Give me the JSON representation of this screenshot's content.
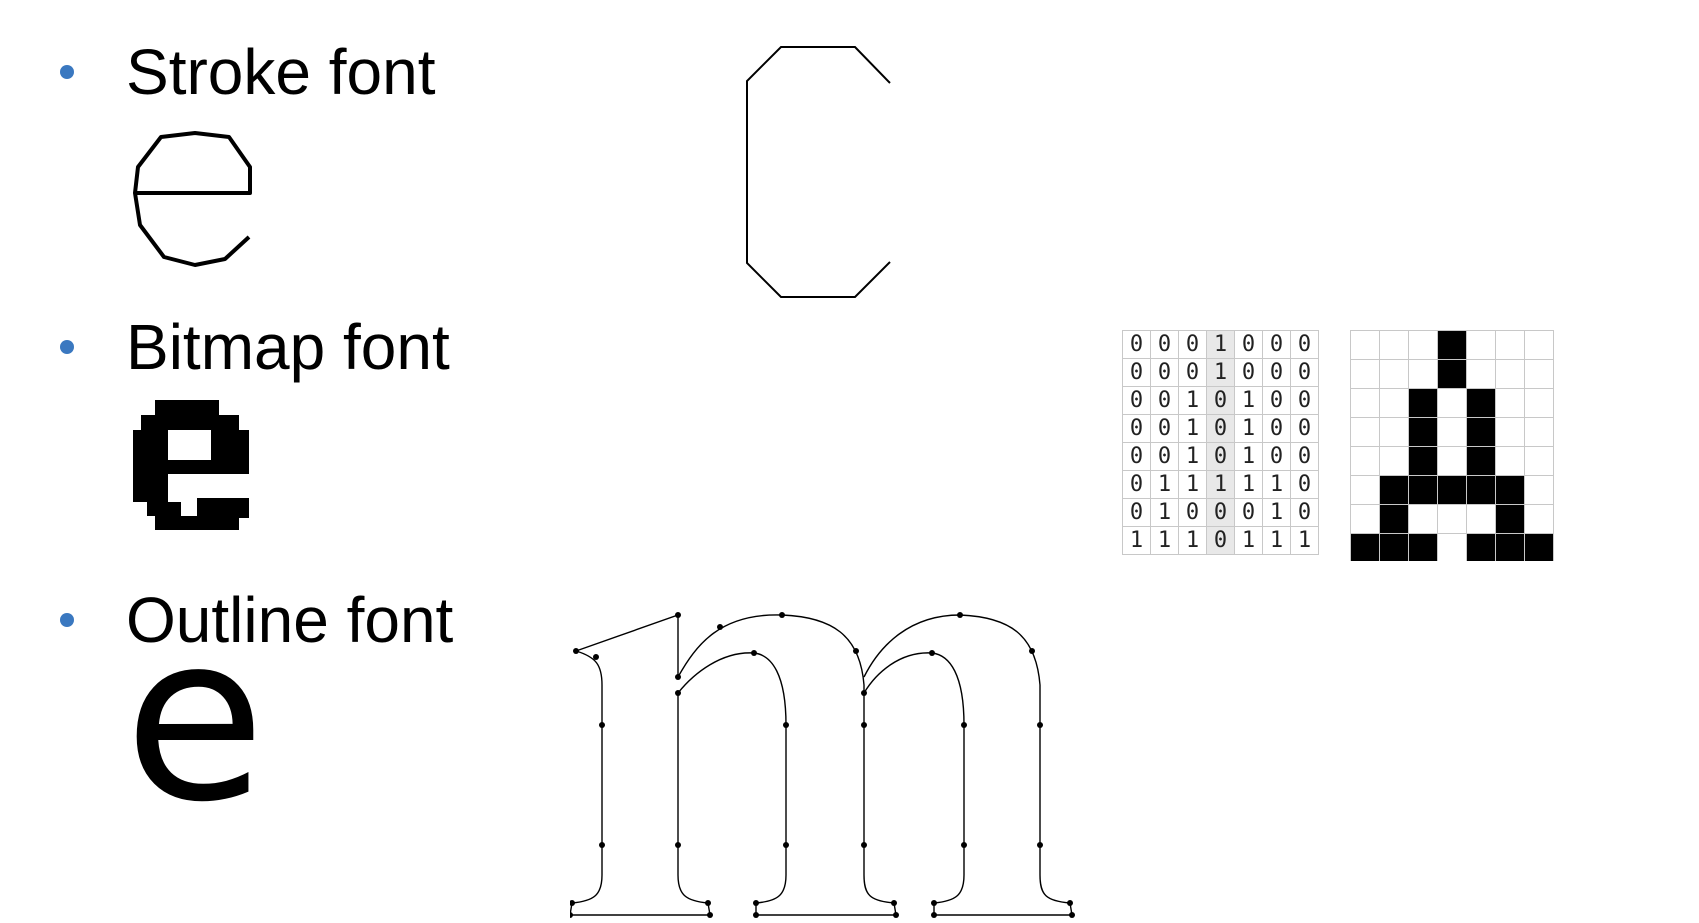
{
  "bullets": [
    {
      "label": "Stroke font"
    },
    {
      "label": "Bitmap font"
    },
    {
      "label": "Outline font"
    }
  ],
  "outline_sample": {
    "glyph": "e"
  },
  "bitmap_glyph": {
    "rows": [
      [
        "0",
        "0",
        "0",
        "1",
        "0",
        "0",
        "0"
      ],
      [
        "0",
        "0",
        "0",
        "1",
        "0",
        "0",
        "0"
      ],
      [
        "0",
        "0",
        "1",
        "0",
        "1",
        "0",
        "0"
      ],
      [
        "0",
        "0",
        "1",
        "0",
        "1",
        "0",
        "0"
      ],
      [
        "0",
        "0",
        "1",
        "0",
        "1",
        "0",
        "0"
      ],
      [
        "0",
        "1",
        "1",
        "1",
        "1",
        "1",
        "0"
      ],
      [
        "0",
        "1",
        "0",
        "0",
        "0",
        "1",
        "0"
      ],
      [
        "1",
        "1",
        "1",
        "0",
        "1",
        "1",
        "1"
      ]
    ]
  },
  "colors": {
    "bullet": "#3a78c0",
    "ink": "#000000",
    "grid": "#c8c8c8",
    "shade": "#e8e8e8"
  }
}
